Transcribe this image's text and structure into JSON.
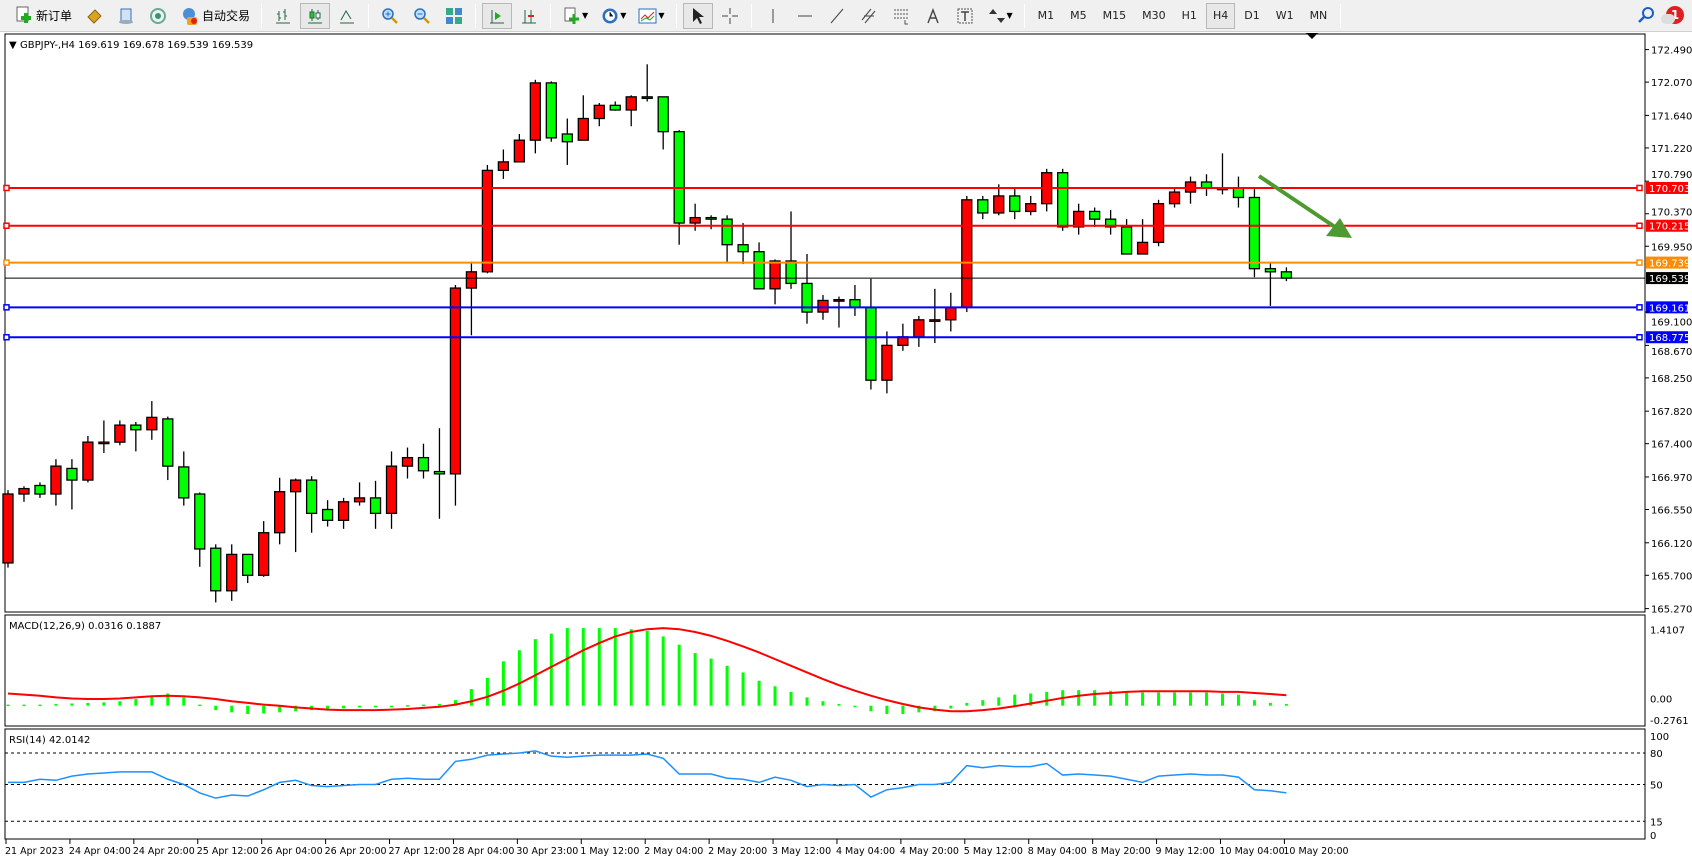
{
  "toolbar": {
    "new_order_label": "新订单",
    "auto_trading_label": "自动交易",
    "timeframes": [
      "M1",
      "M5",
      "M15",
      "M30",
      "H1",
      "H4",
      "D1",
      "W1",
      "MN"
    ],
    "active_timeframe": "H4",
    "notification_count": "1",
    "icons": [
      "new-order-icon",
      "navigator-icon",
      "market-watch-icon",
      "signals-icon",
      "auto-trading-icon",
      "bar-chart-icon",
      "candlestick-icon",
      "line-chart-icon",
      "zoom-in-icon",
      "zoom-out-icon",
      "tile-windows-icon",
      "chart-shift-icon",
      "autoscroll-icon",
      "indicators-icon",
      "periods-icon",
      "templates-icon",
      "cursor-icon",
      "crosshair-icon",
      "vertical-line-icon",
      "horizontal-line-icon",
      "trendline-icon",
      "equidistant-channel-icon",
      "fibonacci-icon",
      "text-icon",
      "text-label-icon",
      "arrows-icon",
      "search-icon",
      "notification-icon"
    ]
  },
  "chart": {
    "header": "GBPJPY-,H4  169.619 169.678 169.539 169.539",
    "macd_label": "MACD(12,26,9) 0.0316 0.1887",
    "rsi_label": "RSI(14) 42.0142",
    "colors": {
      "bull": "#ff0000",
      "bear": "#00ff00",
      "macd_hist": "#00ff00",
      "signal": "#ff0000",
      "rsi": "#1e90ff",
      "arrow": "#4e9a30"
    },
    "levels": [
      {
        "price": "170.703",
        "color": "#ff0000"
      },
      {
        "price": "170.215",
        "color": "#ff0000"
      },
      {
        "price": "169.739",
        "color": "#ff8c00"
      },
      {
        "price": "169.539",
        "color": "#000000"
      },
      {
        "price": "169.161",
        "color": "#0000ff"
      },
      {
        "price": "168.775",
        "color": "#0000ff"
      }
    ],
    "price_ticks": [
      "172.490",
      "172.070",
      "171.640",
      "171.220",
      "170.790",
      "170.370",
      "169.950",
      "169.100",
      "168.670",
      "168.250",
      "167.820",
      "167.400",
      "166.970",
      "166.550",
      "166.120",
      "165.700",
      "165.270"
    ],
    "macd_ticks": [
      "1.4107",
      "0.00",
      "-0.2761"
    ],
    "rsi_ticks": [
      "100",
      "80",
      "50",
      "15",
      "0"
    ],
    "time_labels": [
      "21 Apr 2023",
      "24 Apr 04:00",
      "24 Apr 20:00",
      "25 Apr 12:00",
      "26 Apr 04:00",
      "26 Apr 20:00",
      "27 Apr 12:00",
      "28 Apr 04:00",
      "30 Apr 23:00",
      "1 May 12:00",
      "2 May 04:00",
      "2 May 20:00",
      "3 May 12:00",
      "4 May 04:00",
      "4 May 20:00",
      "5 May 12:00",
      "8 May 04:00",
      "8 May 20:00",
      "9 May 12:00",
      "10 May 04:00",
      "10 May 20:00"
    ]
  },
  "chart_data": [
    {
      "type": "candlestick",
      "title": "GBPJPY-,H4",
      "ylim": [
        165.27,
        172.49
      ],
      "ohlc": [
        [
          165.86,
          166.8,
          165.8,
          166.75
        ],
        [
          166.75,
          166.85,
          166.65,
          166.82
        ],
        [
          166.86,
          166.9,
          166.7,
          166.75
        ],
        [
          166.75,
          167.2,
          166.6,
          167.11
        ],
        [
          167.08,
          167.2,
          166.55,
          166.93
        ],
        [
          166.93,
          167.5,
          166.9,
          167.42
        ],
        [
          167.42,
          167.7,
          167.28,
          167.42
        ],
        [
          167.42,
          167.7,
          167.38,
          167.64
        ],
        [
          167.64,
          167.68,
          167.3,
          167.58
        ],
        [
          167.58,
          167.95,
          167.45,
          167.74
        ],
        [
          167.72,
          167.75,
          166.93,
          167.11
        ],
        [
          167.1,
          167.3,
          166.6,
          166.7
        ],
        [
          166.75,
          166.77,
          165.81,
          166.04
        ],
        [
          166.05,
          166.1,
          165.35,
          165.5
        ],
        [
          165.5,
          166.1,
          165.37,
          165.97
        ],
        [
          165.97,
          165.97,
          165.6,
          165.7
        ],
        [
          165.7,
          166.4,
          165.68,
          166.25
        ],
        [
          166.25,
          166.96,
          166.1,
          166.78
        ],
        [
          166.78,
          166.95,
          166.0,
          166.93
        ],
        [
          166.93,
          166.98,
          166.25,
          166.5
        ],
        [
          166.55,
          166.67,
          166.33,
          166.41
        ],
        [
          166.41,
          166.7,
          166.3,
          166.65
        ],
        [
          166.65,
          166.9,
          166.6,
          166.7
        ],
        [
          166.7,
          166.92,
          166.3,
          166.5
        ],
        [
          166.5,
          167.3,
          166.3,
          167.11
        ],
        [
          167.11,
          167.35,
          166.95,
          167.22
        ],
        [
          167.22,
          167.4,
          166.95,
          167.05
        ],
        [
          167.04,
          167.6,
          166.43,
          167.01
        ],
        [
          167.01,
          169.45,
          166.6,
          169.41
        ],
        [
          169.41,
          169.75,
          168.8,
          169.62
        ],
        [
          169.62,
          171.0,
          169.6,
          170.93
        ],
        [
          170.93,
          171.2,
          170.82,
          171.04
        ],
        [
          171.04,
          171.4,
          171.04,
          171.32
        ],
        [
          171.32,
          172.1,
          171.15,
          172.06
        ],
        [
          172.06,
          172.08,
          171.3,
          171.35
        ],
        [
          171.4,
          171.6,
          171.0,
          171.3
        ],
        [
          171.32,
          171.9,
          171.32,
          171.6
        ],
        [
          171.6,
          171.8,
          171.5,
          171.77
        ],
        [
          171.77,
          171.82,
          171.7,
          171.71
        ],
        [
          171.71,
          171.9,
          171.5,
          171.88
        ],
        [
          171.86,
          172.3,
          171.82,
          171.88
        ],
        [
          171.88,
          171.88,
          171.2,
          171.43
        ],
        [
          171.43,
          171.45,
          169.97,
          170.25
        ],
        [
          170.25,
          170.5,
          170.15,
          170.32
        ],
        [
          170.32,
          170.35,
          170.17,
          170.3
        ],
        [
          170.3,
          170.35,
          169.75,
          169.97
        ],
        [
          169.97,
          170.25,
          169.72,
          169.88
        ],
        [
          169.88,
          170.0,
          169.4,
          169.4
        ],
        [
          169.4,
          169.78,
          169.2,
          169.76
        ],
        [
          169.76,
          170.4,
          169.4,
          169.47
        ],
        [
          169.47,
          169.85,
          168.95,
          169.1
        ],
        [
          169.1,
          169.32,
          169.0,
          169.25
        ],
        [
          169.25,
          169.3,
          168.9,
          169.26
        ],
        [
          169.26,
          169.45,
          169.05,
          169.16
        ],
        [
          169.16,
          169.53,
          168.1,
          168.22
        ],
        [
          168.22,
          168.85,
          168.05,
          168.67
        ],
        [
          168.67,
          168.95,
          168.6,
          168.78
        ],
        [
          168.78,
          169.05,
          168.65,
          169.0
        ],
        [
          169.0,
          169.4,
          168.7,
          169.0
        ],
        [
          169.0,
          169.35,
          168.85,
          169.16
        ],
        [
          169.16,
          170.6,
          169.1,
          170.55
        ],
        [
          170.55,
          170.6,
          170.3,
          170.38
        ],
        [
          170.38,
          170.75,
          170.35,
          170.6
        ],
        [
          170.6,
          170.7,
          170.3,
          170.4
        ],
        [
          170.4,
          170.6,
          170.35,
          170.5
        ],
        [
          170.5,
          170.95,
          170.4,
          170.9
        ],
        [
          170.9,
          170.95,
          170.15,
          170.2
        ],
        [
          170.2,
          170.5,
          170.1,
          170.4
        ],
        [
          170.4,
          170.45,
          170.2,
          170.3
        ],
        [
          170.3,
          170.42,
          170.1,
          170.2
        ],
        [
          170.2,
          170.3,
          169.85,
          169.85
        ],
        [
          169.85,
          170.3,
          169.85,
          170.0
        ],
        [
          170.0,
          170.55,
          169.95,
          170.5
        ],
        [
          170.5,
          170.7,
          170.45,
          170.65
        ],
        [
          170.65,
          170.85,
          170.5,
          170.78
        ],
        [
          170.78,
          170.88,
          170.6,
          170.7
        ],
        [
          170.7,
          171.15,
          170.62,
          170.7
        ],
        [
          170.7,
          170.85,
          170.45,
          170.58
        ],
        [
          170.58,
          170.7,
          169.55,
          169.66
        ],
        [
          169.66,
          169.73,
          169.18,
          169.62
        ],
        [
          169.62,
          169.678,
          169.5,
          169.539
        ]
      ]
    },
    {
      "type": "bar",
      "title": "MACD(12,26,9)",
      "ylim": [
        -0.2761,
        1.4107
      ],
      "series": [
        {
          "name": "MACD",
          "values": [
            0.02,
            0.02,
            0.02,
            0.03,
            0.04,
            0.05,
            0.06,
            0.08,
            0.12,
            0.18,
            0.22,
            0.15,
            0.02,
            -0.08,
            -0.12,
            -0.15,
            -0.14,
            -0.12,
            -0.1,
            -0.08,
            -0.06,
            -0.05,
            -0.03,
            -0.02,
            0.0,
            0.01,
            0.02,
            0.03,
            0.1,
            0.3,
            0.5,
            0.8,
            1.0,
            1.2,
            1.3,
            1.4,
            1.4,
            1.4,
            1.4,
            1.38,
            1.35,
            1.25,
            1.1,
            0.95,
            0.85,
            0.72,
            0.6,
            0.45,
            0.35,
            0.25,
            0.15,
            0.08,
            0.03,
            -0.02,
            -0.1,
            -0.15,
            -0.15,
            -0.12,
            -0.1,
            -0.05,
            0.05,
            0.1,
            0.15,
            0.2,
            0.22,
            0.25,
            0.28,
            0.28,
            0.28,
            0.27,
            0.25,
            0.24,
            0.24,
            0.24,
            0.24,
            0.24,
            0.22,
            0.2,
            0.1,
            0.05,
            0.0316
          ]
        },
        {
          "name": "Signal",
          "values": [
            0.22,
            0.2,
            0.18,
            0.15,
            0.13,
            0.12,
            0.12,
            0.13,
            0.15,
            0.17,
            0.18,
            0.17,
            0.15,
            0.12,
            0.08,
            0.05,
            0.02,
            0.0,
            -0.03,
            -0.05,
            -0.07,
            -0.08,
            -0.08,
            -0.08,
            -0.07,
            -0.06,
            -0.04,
            -0.02,
            0.02,
            0.08,
            0.16,
            0.27,
            0.4,
            0.55,
            0.7,
            0.85,
            1.0,
            1.13,
            1.25,
            1.33,
            1.38,
            1.4,
            1.38,
            1.33,
            1.26,
            1.17,
            1.07,
            0.96,
            0.84,
            0.72,
            0.6,
            0.48,
            0.37,
            0.27,
            0.18,
            0.1,
            0.03,
            -0.03,
            -0.07,
            -0.1,
            -0.1,
            -0.08,
            -0.05,
            -0.01,
            0.04,
            0.09,
            0.14,
            0.18,
            0.21,
            0.23,
            0.25,
            0.26,
            0.26,
            0.26,
            0.26,
            0.26,
            0.25,
            0.25,
            0.23,
            0.21,
            0.1887
          ]
        }
      ]
    },
    {
      "type": "line",
      "title": "RSI(14)",
      "ylim": [
        0,
        100
      ],
      "levels": [
        80,
        50,
        15
      ],
      "values": [
        52,
        52,
        55,
        54,
        58,
        60,
        61,
        62,
        62,
        62,
        55,
        50,
        42,
        37,
        40,
        39,
        45,
        52,
        54,
        49,
        48,
        49,
        50,
        50,
        55,
        56,
        55,
        55,
        72,
        74,
        78,
        79,
        80,
        82,
        77,
        76,
        77,
        78,
        78,
        78,
        79,
        75,
        60,
        60,
        60,
        56,
        55,
        52,
        57,
        54,
        48,
        50,
        49,
        50,
        38,
        45,
        47,
        50,
        50,
        52,
        68,
        66,
        68,
        67,
        67,
        70,
        59,
        60,
        59,
        58,
        55,
        52,
        58,
        59,
        60,
        59,
        59,
        57,
        45,
        44,
        42.0142
      ]
    }
  ]
}
